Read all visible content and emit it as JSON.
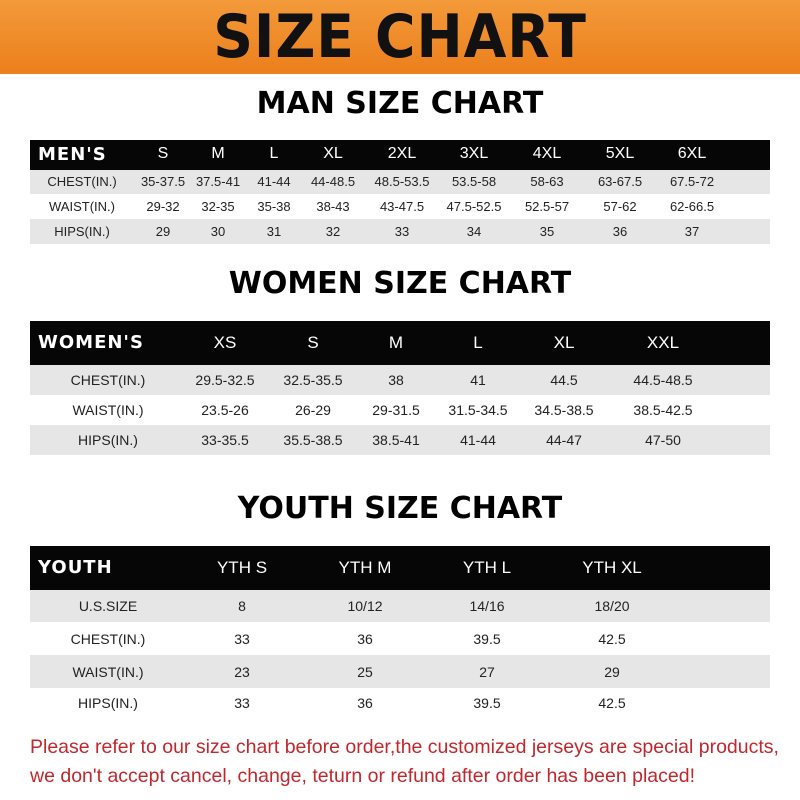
{
  "header": {
    "title": "SIZE CHART",
    "accent": "#ec7f1c"
  },
  "men": {
    "title": "MAN SIZE CHART",
    "label": "MEN'S",
    "sizes": [
      "S",
      "M",
      "L",
      "XL",
      "2XL",
      "3XL",
      "4XL",
      "5XL",
      "6XL"
    ],
    "rows": [
      {
        "label": "CHEST(IN.)",
        "values": [
          "35-37.5",
          "37.5-41",
          "41-44",
          "44-48.5",
          "48.5-53.5",
          "53.5-58",
          "58-63",
          "63-67.5",
          "67.5-72"
        ]
      },
      {
        "label": "WAIST(IN.)",
        "values": [
          "29-32",
          "32-35",
          "35-38",
          "38-43",
          "43-47.5",
          "47.5-52.5",
          "52.5-57",
          "57-62",
          "62-66.5"
        ]
      },
      {
        "label": "HIPS(IN.)",
        "values": [
          "29",
          "30",
          "31",
          "32",
          "33",
          "34",
          "35",
          "36",
          "37"
        ]
      }
    ]
  },
  "women": {
    "title": "WOMEN SIZE CHART",
    "label": "WOMEN'S",
    "sizes": [
      "XS",
      "S",
      "M",
      "L",
      "XL",
      "XXL"
    ],
    "rows": [
      {
        "label": "CHEST(IN.)",
        "values": [
          "29.5-32.5",
          "32.5-35.5",
          "38",
          "41",
          "44.5",
          "44.5-48.5"
        ]
      },
      {
        "label": "WAIST(IN.)",
        "values": [
          "23.5-26",
          "26-29",
          "29-31.5",
          "31.5-34.5",
          "34.5-38.5",
          "38.5-42.5"
        ]
      },
      {
        "label": "HIPS(IN.)",
        "values": [
          "33-35.5",
          "35.5-38.5",
          "38.5-41",
          "41-44",
          "44-47",
          "47-50"
        ]
      }
    ]
  },
  "youth": {
    "title": "YOUTH SIZE CHART",
    "label": "YOUTH",
    "sizes": [
      "YTH S",
      "YTH M",
      "YTH L",
      "YTH XL"
    ],
    "rows": [
      {
        "label": "U.S.SIZE",
        "values": [
          "8",
          "10/12",
          "14/16",
          "18/20"
        ]
      },
      {
        "label": "CHEST(IN.)",
        "values": [
          "33",
          "36",
          "39.5",
          "42.5"
        ]
      },
      {
        "label": "WAIST(IN.)",
        "values": [
          "23",
          "25",
          "27",
          "29"
        ]
      },
      {
        "label": "HIPS(IN.)",
        "values": [
          "33",
          "36",
          "39.5",
          "42.5"
        ]
      }
    ]
  },
  "notice": {
    "line1": "Please refer to our size chart before order,the customized jerseys are special products,",
    "line2": "we don't accept cancel, change, teturn or refund after order has been placed!",
    "color": "#c1272d"
  }
}
